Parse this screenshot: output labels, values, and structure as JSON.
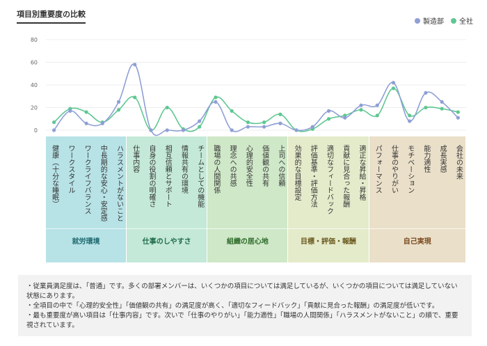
{
  "title": "項目別重要度の比較",
  "legend": [
    {
      "name": "製造部",
      "color": "#8f9fd6"
    },
    {
      "name": "全社",
      "color": "#5fc792"
    }
  ],
  "chart_data": {
    "type": "line",
    "ylim": [
      0,
      80
    ],
    "yticks": [
      0,
      20,
      40,
      60,
      80
    ],
    "categories": [
      "健康（十分な睡眠）",
      "ワークスタイル",
      "ワークライフバランス",
      "中長期的な安心・安定感",
      "ハラスメントがないこと",
      "仕事内容",
      "自身の役割の明確さ",
      "相互信頼とサポート",
      "情報共有の環境",
      "チームとしての機能",
      "職場の人間関係",
      "理念への共感",
      "心理的安全性",
      "価値観の共有",
      "上司への信頼",
      "効果的な目標設定",
      "評価基準・評価方法",
      "適切なフィードバック",
      "貢献に見合った報酬",
      "適正な昇給・昇格",
      "パフォーマンス",
      "仕事のやりがい",
      "モチベーション",
      "能力適性",
      "成長実感",
      "会社の未来"
    ],
    "series": [
      {
        "name": "製造部",
        "color": "#8f9fd6",
        "values": [
          0,
          17,
          6,
          6,
          25,
          58,
          0,
          0,
          0,
          8,
          25,
          0,
          3,
          3,
          6,
          0,
          3,
          17,
          11,
          22,
          22,
          42,
          8,
          33,
          25,
          11
        ]
      },
      {
        "name": "全社",
        "color": "#5fc792",
        "values": [
          7,
          19,
          16,
          7,
          18,
          29,
          0,
          20,
          1,
          3,
          29,
          17,
          7,
          7,
          14,
          0,
          1,
          10,
          13,
          18,
          13,
          37,
          13,
          20,
          19,
          16
        ]
      }
    ],
    "groups": [
      {
        "label": "就労環境",
        "start": 0,
        "end": 4,
        "fill": "#b7e2e6",
        "text": "#1f6b70"
      },
      {
        "label": "仕事のしやすさ",
        "start": 5,
        "end": 9,
        "fill": "#c4e9d8",
        "text": "#1f6b4a"
      },
      {
        "label": "組織の居心地",
        "start": 10,
        "end": 14,
        "fill": "#cfe8c8",
        "text": "#2e6b2a"
      },
      {
        "label": "目標・評価・報酬",
        "start": 15,
        "end": 19,
        "fill": "#e4ebcb",
        "text": "#6b5a1f"
      },
      {
        "label": "自己実現",
        "start": 20,
        "end": 25,
        "fill": "#eadfc9",
        "text": "#7a4a1f"
      }
    ]
  },
  "notes": [
    "・従業員満足度は、「普通」です。多くの部署メンバーは、いくつかの項目については満足しているが、いくつかの項目については満足していない状態にあります。",
    "・全項目の中で「心理的安全性」「価値観の共有」の満足度が高く、「適切なフィードバック」「貢献に見合った報酬」の満足度が低いです。",
    "・最も重要度が高い項目は「仕事内容」です。次いで「仕事のやりがい」「能力適性」「職場の人間関係」「ハラスメントがないこと」の順で、重要視されています。"
  ]
}
